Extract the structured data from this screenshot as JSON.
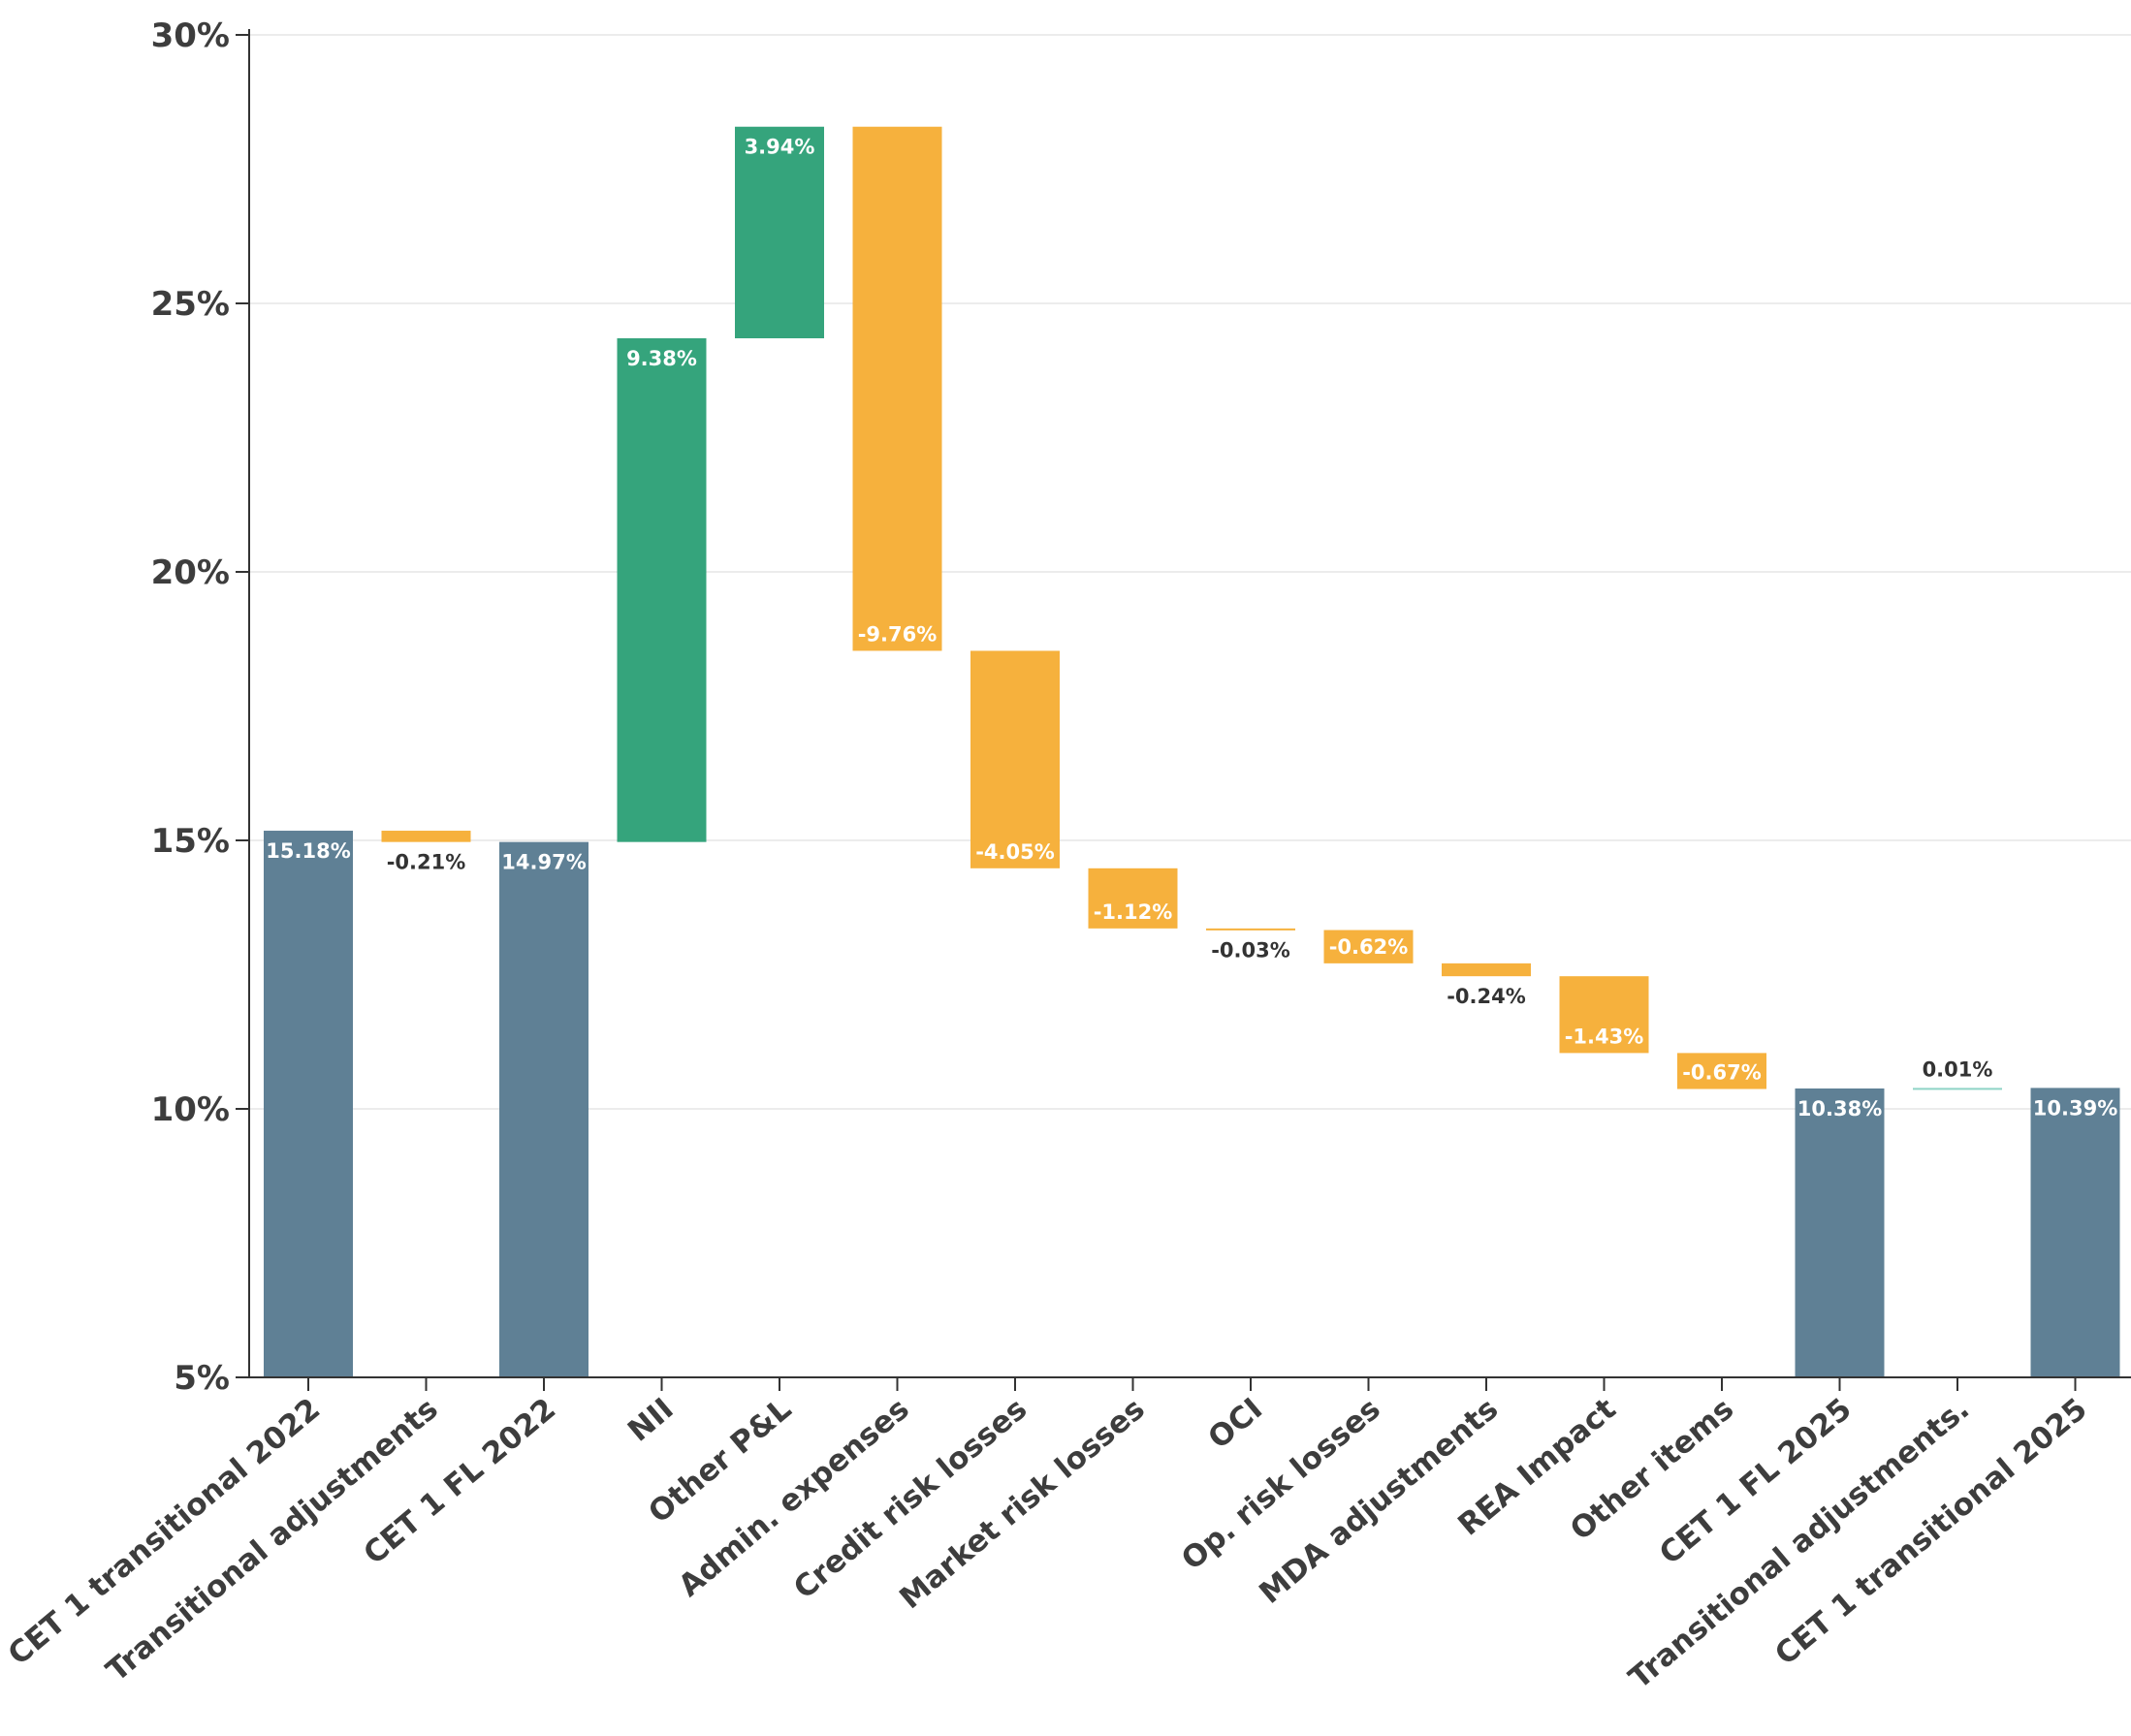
{
  "chart_data": {
    "type": "waterfall",
    "title": "",
    "xlabel": "",
    "ylabel": "",
    "y_unit_suffix": "%",
    "ylim": [
      5,
      30
    ],
    "yticks": [
      5,
      10,
      15,
      20,
      25,
      30
    ],
    "grid": true,
    "legend": "none",
    "colors": {
      "total": "#5f8095",
      "increase": "#35a47c",
      "decrease": "#f6b13d",
      "small_increase": "#8fd4c6",
      "axis": "#333333",
      "grid": "#e6e6e6"
    },
    "categories": [
      "CET 1 transitional 2022",
      "Transitional adjustments",
      "CET 1 FL 2022",
      "NII",
      "Other P&L",
      "Admin. expenses",
      "Credit risk losses",
      "Market risk losses",
      "OCI",
      "Op. risk losses",
      "MDA adjustments",
      "REA Impact",
      "Other items",
      "CET 1 FL 2025",
      "Transitional adjustments.",
      "CET 1 transitional 2025"
    ],
    "bars": [
      {
        "kind": "total",
        "start": 0,
        "end": 15.18,
        "label": "15.18%"
      },
      {
        "kind": "delta",
        "start": 15.18,
        "end": 14.97,
        "label": "-0.21%"
      },
      {
        "kind": "total",
        "start": 0,
        "end": 14.97,
        "label": "14.97%"
      },
      {
        "kind": "delta",
        "start": 14.97,
        "end": 24.35,
        "label": "9.38%"
      },
      {
        "kind": "delta",
        "start": 24.35,
        "end": 28.29,
        "label": "3.94%"
      },
      {
        "kind": "delta",
        "start": 28.29,
        "end": 18.53,
        "label": "-9.76%"
      },
      {
        "kind": "delta",
        "start": 18.53,
        "end": 14.48,
        "label": "-4.05%"
      },
      {
        "kind": "delta",
        "start": 14.48,
        "end": 13.36,
        "label": "-1.12%"
      },
      {
        "kind": "delta",
        "start": 13.36,
        "end": 13.33,
        "label": "-0.03%"
      },
      {
        "kind": "delta",
        "start": 13.33,
        "end": 12.71,
        "label": "-0.62%"
      },
      {
        "kind": "delta",
        "start": 12.71,
        "end": 12.47,
        "label": "-0.24%"
      },
      {
        "kind": "delta",
        "start": 12.47,
        "end": 11.04,
        "label": "-1.43%"
      },
      {
        "kind": "delta",
        "start": 11.04,
        "end": 10.37,
        "label": "-0.67%"
      },
      {
        "kind": "total",
        "start": 0,
        "end": 10.38,
        "label": "10.38%"
      },
      {
        "kind": "delta",
        "start": 10.38,
        "end": 10.39,
        "label": "0.01%"
      },
      {
        "kind": "total",
        "start": 0,
        "end": 10.39,
        "label": "10.39%"
      }
    ]
  }
}
